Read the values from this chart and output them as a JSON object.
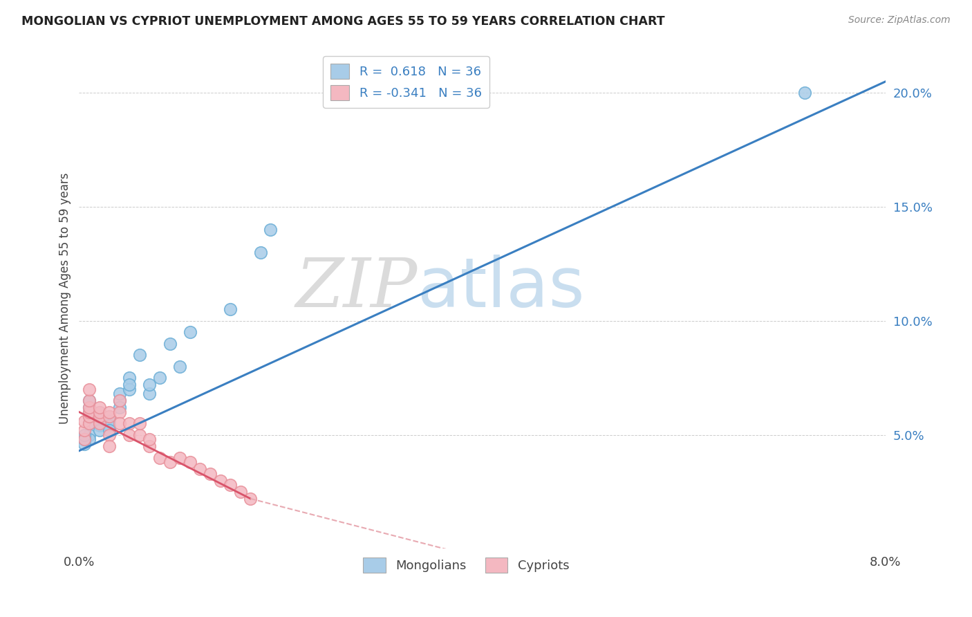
{
  "title": "MONGOLIAN VS CYPRIOT UNEMPLOYMENT AMONG AGES 55 TO 59 YEARS CORRELATION CHART",
  "source": "Source: ZipAtlas.com",
  "ylabel": "Unemployment Among Ages 55 to 59 years",
  "xlim": [
    0.0,
    0.08
  ],
  "ylim": [
    0.0,
    0.22
  ],
  "yticks": [
    0.05,
    0.1,
    0.15,
    0.2
  ],
  "ytick_labels": [
    "5.0%",
    "10.0%",
    "15.0%",
    "20.0%"
  ],
  "xticks": [
    0.0,
    0.01,
    0.02,
    0.03,
    0.04,
    0.05,
    0.06,
    0.07,
    0.08
  ],
  "xtick_labels": [
    "0.0%",
    "",
    "",
    "",
    "",
    "",
    "",
    "",
    "8.0%"
  ],
  "watermark_zip": "ZIP",
  "watermark_atlas": "atlas",
  "legend_r_mongolian": "R =  0.618",
  "legend_n_mongolian": "N = 36",
  "legend_r_cypriot": "R = -0.341",
  "legend_n_cypriot": "N = 36",
  "mongolian_color": "#a8cce8",
  "cypriot_color": "#f4b8c1",
  "mongolian_edge_color": "#6baed6",
  "cypriot_edge_color": "#e8909a",
  "trend_mongolian_color": "#3a7fc1",
  "trend_cypriot_color": "#d9536a",
  "trend_cypriot_dash_color": "#e8aab2",
  "background_color": "#ffffff",
  "grid_color": "#cccccc",
  "mongolian_x": [
    0.001,
    0.001,
    0.001,
    0.001,
    0.001,
    0.001,
    0.001,
    0.0005,
    0.0005,
    0.0005,
    0.002,
    0.002,
    0.002,
    0.002,
    0.002,
    0.003,
    0.003,
    0.003,
    0.003,
    0.004,
    0.004,
    0.004,
    0.005,
    0.005,
    0.005,
    0.006,
    0.007,
    0.007,
    0.008,
    0.009,
    0.01,
    0.011,
    0.015,
    0.018,
    0.019,
    0.072
  ],
  "mongolian_y": [
    0.055,
    0.058,
    0.06,
    0.062,
    0.065,
    0.05,
    0.048,
    0.046,
    0.048,
    0.05,
    0.06,
    0.058,
    0.056,
    0.054,
    0.052,
    0.058,
    0.056,
    0.054,
    0.052,
    0.065,
    0.068,
    0.062,
    0.075,
    0.07,
    0.072,
    0.085,
    0.068,
    0.072,
    0.075,
    0.09,
    0.08,
    0.095,
    0.105,
    0.13,
    0.14,
    0.2
  ],
  "cypriot_x": [
    0.0005,
    0.0005,
    0.0005,
    0.001,
    0.001,
    0.001,
    0.001,
    0.001,
    0.001,
    0.002,
    0.002,
    0.002,
    0.002,
    0.003,
    0.003,
    0.003,
    0.003,
    0.004,
    0.004,
    0.004,
    0.005,
    0.005,
    0.006,
    0.006,
    0.007,
    0.007,
    0.008,
    0.009,
    0.01,
    0.011,
    0.012,
    0.013,
    0.014,
    0.015,
    0.016,
    0.017
  ],
  "cypriot_y": [
    0.048,
    0.052,
    0.056,
    0.055,
    0.058,
    0.06,
    0.062,
    0.065,
    0.07,
    0.055,
    0.058,
    0.06,
    0.062,
    0.058,
    0.06,
    0.05,
    0.045,
    0.06,
    0.065,
    0.055,
    0.055,
    0.05,
    0.05,
    0.055,
    0.045,
    0.048,
    0.04,
    0.038,
    0.04,
    0.038,
    0.035,
    0.033,
    0.03,
    0.028,
    0.025,
    0.022
  ]
}
